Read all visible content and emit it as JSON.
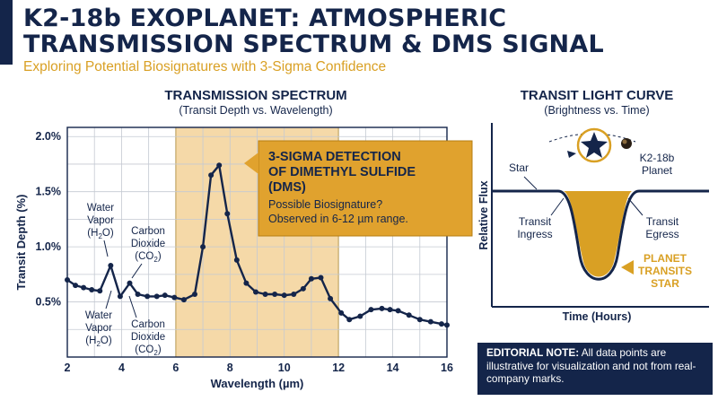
{
  "header": {
    "title": "K2-18b EXOPLANET: ATMOSPHERIC TRANSMISSION SPECTRUM & DMS SIGNAL",
    "subtitle": "Exploring Potential Biosignatures with 3-Sigma Confidence"
  },
  "colors": {
    "navy": "#14254a",
    "gold": "#d9a024",
    "highlight": "#f5d9a8"
  },
  "chart_data": [
    {
      "type": "line",
      "title": "TRANSMISSION SPECTRUM",
      "subtitle": "(Transit Depth vs. Wavelength)",
      "xlabel": "Wavelength (µm)",
      "ylabel": "Transit Depth (%)",
      "xlim": [
        2,
        16
      ],
      "ylim": [
        0.0,
        2.0
      ],
      "xticks": [
        2,
        4,
        6,
        8,
        10,
        12,
        14,
        16
      ],
      "yticks": [
        0.5,
        1.0,
        1.5,
        2.0
      ],
      "ytick_labels": [
        "0.5%",
        "1.0%",
        "1.5%",
        "2.0%"
      ],
      "grid": true,
      "highlight_region": [
        6,
        12
      ],
      "series": [
        {
          "x": [
            2.0,
            2.3,
            2.6,
            2.9,
            3.2,
            3.6,
            3.95,
            4.3,
            4.6,
            4.95,
            5.3,
            5.6,
            5.95,
            6.3,
            6.7,
            7.0,
            7.3,
            7.6,
            7.9,
            8.25,
            8.6,
            8.95,
            9.3,
            9.65,
            10.0,
            10.35,
            10.7,
            11.0,
            11.35,
            11.7,
            12.1,
            12.4,
            12.8,
            13.2,
            13.6,
            13.9,
            14.2,
            14.6,
            15.0,
            15.4,
            15.8,
            16.0
          ],
          "values": [
            0.7,
            0.65,
            0.63,
            0.61,
            0.6,
            0.83,
            0.55,
            0.67,
            0.57,
            0.55,
            0.55,
            0.56,
            0.54,
            0.52,
            0.57,
            1.0,
            1.65,
            1.74,
            1.3,
            0.88,
            0.67,
            0.59,
            0.57,
            0.57,
            0.56,
            0.57,
            0.62,
            0.71,
            0.72,
            0.53,
            0.4,
            0.34,
            0.37,
            0.43,
            0.44,
            0.43,
            0.42,
            0.38,
            0.34,
            0.32,
            0.3,
            0.29
          ]
        }
      ],
      "annotations": {
        "water_top": [
          "Water",
          "Vapor",
          "(H",
          "2",
          "O)"
        ],
        "carbon_top": [
          "Carbon",
          "Dioxide",
          "(CO",
          "2",
          ")"
        ],
        "water_bottom": [
          "Water",
          "Vapor",
          "(H",
          "2",
          "O)"
        ],
        "carbon_bottom": [
          "Carbon",
          "Dioxide",
          "(CO",
          "2",
          ")"
        ],
        "callout_title": [
          "3-SIGMA DETECTION",
          "OF DIMETHYL SULFIDE",
          "(DMS)"
        ],
        "callout_body": [
          "Possible Biosignature?",
          "Observed in 6-12 µm range."
        ]
      }
    },
    {
      "type": "line",
      "title": "TRANSIT LIGHT CURVE",
      "subtitle": "(Brightness vs. Time)",
      "xlabel": "Time (Hours)",
      "ylabel": "Relative Flux",
      "labels": {
        "star": "Star",
        "planet": [
          "K2-18b",
          "Planet"
        ],
        "ingress": [
          "Transit",
          "Ingress"
        ],
        "egress": [
          "Transit",
          "Egress"
        ],
        "transit": [
          "PLANET",
          "TRANSITS",
          "STAR"
        ]
      }
    }
  ],
  "note": {
    "bold": "EDITORIAL NOTE:",
    "text": " All data points are illustrative for visualization and not from real-company marks."
  }
}
